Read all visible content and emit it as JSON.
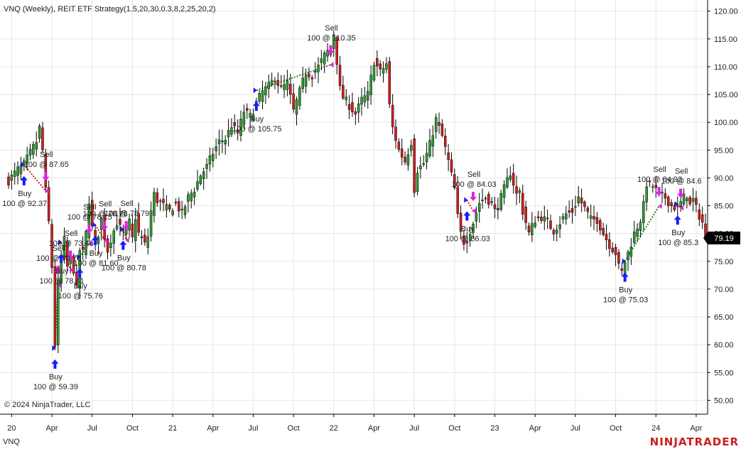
{
  "chart_data": {
    "type": "candlestick",
    "title": "VNQ (Weekly), REIT ETF Strategy(1.5,20,30,0.3,8,2,25,20,2)",
    "instrument_label": "VNQ",
    "copyright": "© 2024 NinjaTrader, LLC",
    "brand": "NINJATRADER",
    "last_price": "79.19",
    "colors": {
      "up": "#2e9e2e",
      "down": "#d41d1d",
      "wick": "#000000",
      "buy_arrow": "#1a1aff",
      "sell_arrow": "#e022e0",
      "win_line": "#1e8c1e",
      "loss_line": "#d41d1d",
      "grid": "#e6e6e6",
      "price_tag_bg": "#000000"
    },
    "y_axis": {
      "min": 47.5,
      "max": 122.0,
      "ticks": [
        "50.00",
        "55.00",
        "60.00",
        "65.00",
        "70.00",
        "75.00",
        "80.00",
        "85.00",
        "90.00",
        "95.00",
        "100.00",
        "105.00",
        "110.00",
        "115.00",
        "120.00"
      ]
    },
    "x_axis": {
      "tick_labels": [
        {
          "label": "20",
          "week": 1
        },
        {
          "label": "Apr",
          "week": 14
        },
        {
          "label": "Jul",
          "week": 27
        },
        {
          "label": "Oct",
          "week": 40
        },
        {
          "label": "21",
          "week": 53
        },
        {
          "label": "Apr",
          "week": 66
        },
        {
          "label": "Jul",
          "week": 79
        },
        {
          "label": "Oct",
          "week": 92
        },
        {
          "label": "22",
          "week": 105
        },
        {
          "label": "Apr",
          "week": 118
        },
        {
          "label": "Jul",
          "week": 131
        },
        {
          "label": "Oct",
          "week": 144
        },
        {
          "label": "23",
          "week": 157
        },
        {
          "label": "Apr",
          "week": 170
        },
        {
          "label": "Jul",
          "week": 183
        },
        {
          "label": "Oct",
          "week": 196
        },
        {
          "label": "24",
          "week": 209
        },
        {
          "label": "Apr",
          "week": 222
        }
      ]
    },
    "close_path": [
      [
        0,
        89.5
      ],
      [
        3,
        91.5
      ],
      [
        5,
        92.4
      ],
      [
        7,
        94.5
      ],
      [
        9,
        96.5
      ],
      [
        10,
        99.0
      ],
      [
        11,
        95.0
      ],
      [
        12,
        87.6
      ],
      [
        13,
        82.0
      ],
      [
        14,
        74.0
      ],
      [
        15,
        60.0
      ],
      [
        16,
        71.0
      ],
      [
        17,
        75.5
      ],
      [
        18,
        78.8
      ],
      [
        19,
        74.0
      ],
      [
        20,
        76.0
      ],
      [
        21,
        73.5
      ],
      [
        22,
        70.0
      ],
      [
        23,
        77.0
      ],
      [
        24,
        76.5
      ],
      [
        25,
        80.0
      ],
      [
        26,
        86.0
      ],
      [
        27,
        81.0
      ],
      [
        28,
        78.2
      ],
      [
        29,
        80.0
      ],
      [
        30,
        82.5
      ],
      [
        31,
        79.5
      ],
      [
        32,
        77.0
      ],
      [
        33,
        79.0
      ],
      [
        34,
        80.5
      ],
      [
        35,
        82.0
      ],
      [
        36,
        81.0
      ],
      [
        37,
        80.0
      ],
      [
        38,
        80.5
      ],
      [
        39,
        82.0
      ],
      [
        40,
        79.0
      ],
      [
        41,
        83.0
      ],
      [
        42,
        80.0
      ],
      [
        43,
        79.0
      ],
      [
        44,
        78.0
      ],
      [
        45,
        79.5
      ],
      [
        46,
        84.0
      ],
      [
        47,
        87.0
      ],
      [
        48,
        86.0
      ],
      [
        50,
        85.0
      ],
      [
        52,
        84.0
      ],
      [
        54,
        85.5
      ],
      [
        56,
        83.5
      ],
      [
        58,
        86.5
      ],
      [
        60,
        88.0
      ],
      [
        62,
        90.5
      ],
      [
        64,
        92.0
      ],
      [
        66,
        94.5
      ],
      [
        68,
        96.5
      ],
      [
        70,
        97.0
      ],
      [
        72,
        99.5
      ],
      [
        74,
        98.0
      ],
      [
        76,
        102.0
      ],
      [
        78,
        101.0
      ],
      [
        80,
        103.5
      ],
      [
        82,
        105.5
      ],
      [
        84,
        106.5
      ],
      [
        86,
        108.0
      ],
      [
        88,
        106.0
      ],
      [
        90,
        107.0
      ],
      [
        92,
        102.0
      ],
      [
        94,
        105.5
      ],
      [
        96,
        109.0
      ],
      [
        98,
        108.5
      ],
      [
        100,
        110.0
      ],
      [
        102,
        112.0
      ],
      [
        104,
        113.5
      ],
      [
        105,
        116.0
      ],
      [
        106,
        111.0
      ],
      [
        107,
        106.0
      ],
      [
        108,
        104.5
      ],
      [
        110,
        103.0
      ],
      [
        112,
        101.5
      ],
      [
        114,
        104.0
      ],
      [
        116,
        105.0
      ],
      [
        118,
        111.0
      ],
      [
        120,
        109.0
      ],
      [
        122,
        110.5
      ],
      [
        123,
        103.0
      ],
      [
        124,
        99.0
      ],
      [
        126,
        95.0
      ],
      [
        128,
        93.0
      ],
      [
        130,
        96.5
      ],
      [
        131,
        88.0
      ],
      [
        132,
        91.5
      ],
      [
        134,
        92.5
      ],
      [
        136,
        96.0
      ],
      [
        138,
        100.5
      ],
      [
        140,
        97.5
      ],
      [
        142,
        93.0
      ],
      [
        144,
        88.0
      ],
      [
        145,
        83.0
      ],
      [
        146,
        80.0
      ],
      [
        147,
        78.5
      ],
      [
        148,
        79.0
      ],
      [
        150,
        82.0
      ],
      [
        152,
        85.5
      ],
      [
        154,
        86.5
      ],
      [
        156,
        85.5
      ],
      [
        157,
        84.0
      ],
      [
        158,
        85.0
      ],
      [
        160,
        88.0
      ],
      [
        162,
        91.0
      ],
      [
        163,
        89.0
      ],
      [
        164,
        87.0
      ],
      [
        165,
        87.5
      ],
      [
        166,
        84.0
      ],
      [
        167,
        82.0
      ],
      [
        168,
        80.0
      ],
      [
        170,
        82.5
      ],
      [
        172,
        83.0
      ],
      [
        174,
        82.0
      ],
      [
        176,
        80.5
      ],
      [
        178,
        82.0
      ],
      [
        180,
        83.5
      ],
      [
        182,
        84.0
      ],
      [
        184,
        86.5
      ],
      [
        186,
        84.5
      ],
      [
        188,
        82.5
      ],
      [
        190,
        82.5
      ],
      [
        192,
        80.0
      ],
      [
        194,
        78.0
      ],
      [
        196,
        76.5
      ],
      [
        197,
        74.0
      ],
      [
        198,
        73.0
      ],
      [
        199,
        75.0
      ],
      [
        200,
        76.5
      ],
      [
        202,
        80.0
      ],
      [
        204,
        82.5
      ],
      [
        205,
        85.0
      ],
      [
        206,
        89.0
      ],
      [
        208,
        88.5
      ],
      [
        210,
        87.0
      ],
      [
        212,
        86.5
      ],
      [
        214,
        85.0
      ],
      [
        216,
        84.5
      ],
      [
        218,
        86.5
      ],
      [
        219,
        87.0
      ],
      [
        220,
        85.0
      ],
      [
        221,
        86.0
      ],
      [
        222,
        84.5
      ],
      [
        224,
        82.0
      ],
      [
        225,
        79.2
      ]
    ],
    "trades": [
      {
        "week": 5,
        "buy_price": 92.37,
        "buy_text": "Buy",
        "buy_value": "100 @ 92.37",
        "exit_week": 12,
        "exit_price": 87.65,
        "sell_text": "Sell",
        "sell_value": "100 @ 87.65",
        "win": false
      },
      {
        "week": 15,
        "buy_price": 59.39,
        "buy_text": "Buy",
        "buy_value": "100 @ 59.39",
        "exit_week": 16,
        "exit_price": 70.76,
        "sell_text": "Sell",
        "sell_value": "100 @ 70.76",
        "win": true
      },
      {
        "week": 17,
        "buy_price": 78.41,
        "buy_text": "Buy",
        "buy_value": "100 @ 78.41",
        "exit_week": 20,
        "exit_price": 73.46,
        "sell_text": "Sell",
        "sell_value": "100 @ 73.46",
        "win": false
      },
      {
        "week": 23,
        "buy_price": 75.76,
        "buy_text": "Buy",
        "buy_value": "100 @ 75.76",
        "exit_week": 26,
        "exit_price": 78.15,
        "sell_text": "Sell",
        "sell_value": "100 @ 78.15",
        "win": true
      },
      {
        "week": 28,
        "buy_price": 81.6,
        "buy_text": "Buy",
        "buy_value": "100 @ 81.60",
        "exit_week": 31,
        "exit_price": 78.76,
        "sell_text": "Sell",
        "sell_value": "100 @ 78.76",
        "win": false
      },
      {
        "week": 37,
        "buy_price": 80.78,
        "buy_text": "Buy",
        "buy_value": "100 @ 80.78",
        "exit_week": 38,
        "exit_price": 78.79,
        "sell_text": "Sell",
        "sell_value": "100 @ 78.79",
        "win": false
      },
      {
        "week": 80,
        "buy_price": 105.75,
        "buy_text": "Buy",
        "buy_value": "100 @ 105.75",
        "exit_week": 104,
        "exit_price": 110.35,
        "sell_text": "Sell",
        "sell_value": "100 @ 110.35",
        "win": true
      },
      {
        "week": 148,
        "buy_price": 86.03,
        "buy_text": "Buy",
        "buy_value": "100 @ 86.03",
        "exit_week": 150,
        "exit_price": 84.03,
        "sell_text": "Sell",
        "sell_value": "100 @ 84.03",
        "win": false
      },
      {
        "week": 199,
        "buy_price": 75.03,
        "buy_text": "Buy",
        "buy_value": "100 @ 75.03",
        "exit_week": 210,
        "exit_price": 84.92,
        "sell_text": "Sell",
        "sell_value": "100 @ 84.92",
        "win": true
      },
      {
        "week": 216,
        "buy_price": 85.3,
        "buy_text": "Buy",
        "buy_value": "100 @ 85.3",
        "exit_week": 217,
        "exit_price": 84.6,
        "sell_text": "Sell",
        "sell_value": "100 @ 84.6",
        "win": false
      }
    ]
  }
}
